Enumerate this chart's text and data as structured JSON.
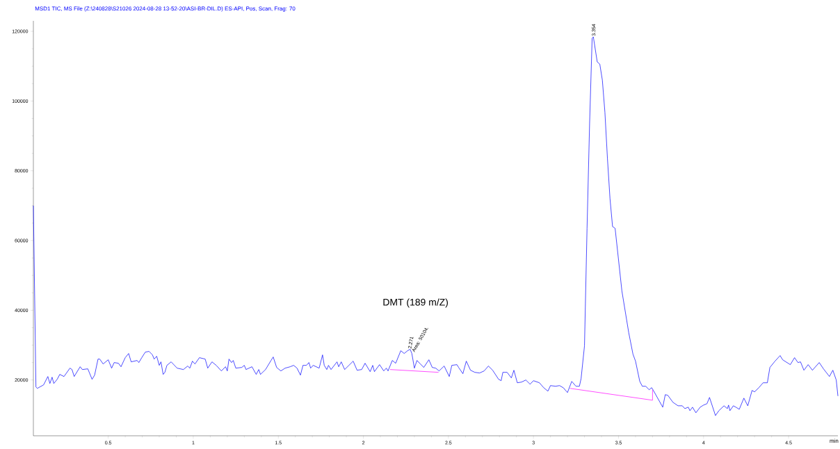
{
  "chart_data": {
    "type": "line",
    "title": "MSD1 TIC, MS File (Z:\\240828\\S21026 2024-08-28 13-52-20\\ASI-BR-DIL.D)    ES-API, Pos, Scan, Frag: 70",
    "xlabel": "min",
    "xlim": [
      0.06,
      4.79
    ],
    "ylim": [
      4000,
      123000
    ],
    "xticks": [
      0.5,
      1,
      1.5,
      2,
      2.5,
      3,
      3.5,
      4,
      4.5
    ],
    "yticks": [
      20000,
      40000,
      60000,
      80000,
      100000,
      120000
    ],
    "grid": false,
    "marker": "none",
    "line_style": "solid",
    "annotations": [
      "DMT (189 m/Z)",
      {
        "text": "3.354",
        "x": 3.354,
        "y": 118400
      },
      {
        "text": "2.271",
        "x": 2.271,
        "y": 28800
      },
      {
        "text": "Area: 50104.",
        "x": 2.29,
        "y": 28000
      }
    ],
    "series": [
      {
        "color": "#0000ff",
        "x": [
          0.06,
          0.075,
          0.083,
          0.12,
          0.145,
          0.157,
          0.17,
          0.18,
          0.2,
          0.215,
          0.24,
          0.275,
          0.287,
          0.3,
          0.335,
          0.348,
          0.38,
          0.405,
          0.42,
          0.44,
          0.45,
          0.47,
          0.5,
          0.52,
          0.535,
          0.56,
          0.575,
          0.6,
          0.62,
          0.635,
          0.67,
          0.68,
          0.697,
          0.718,
          0.74,
          0.76,
          0.77,
          0.785,
          0.8,
          0.81,
          0.823,
          0.833,
          0.845,
          0.87,
          0.905,
          0.942,
          0.967,
          0.98,
          0.995,
          1.01,
          1.036,
          1.07,
          1.085,
          1.11,
          1.135,
          1.165,
          1.19,
          1.2,
          1.21,
          1.225,
          1.235,
          1.25,
          1.285,
          1.3,
          1.31,
          1.345,
          1.37,
          1.385,
          1.395,
          1.425,
          1.457,
          1.47,
          1.49,
          1.515,
          1.54,
          1.57,
          1.59,
          1.61,
          1.63,
          1.645,
          1.665,
          1.68,
          1.69,
          1.705,
          1.74,
          1.76,
          1.77,
          1.785,
          1.795,
          1.81,
          1.845,
          1.855,
          1.87,
          1.89,
          1.915,
          1.94,
          1.963,
          1.99,
          2.01,
          2.04,
          2.055,
          2.065,
          2.095,
          2.12,
          2.135,
          2.145,
          2.17,
          2.19,
          2.22,
          2.24,
          2.26,
          2.275,
          2.285,
          2.3,
          2.315,
          2.335,
          2.355,
          2.385,
          2.405,
          2.425,
          2.445,
          2.475,
          2.505,
          2.52,
          2.55,
          2.56,
          2.585,
          2.605,
          2.63,
          2.655,
          2.683,
          2.71,
          2.735,
          2.76,
          2.795,
          2.81,
          2.82,
          2.845,
          2.87,
          2.885,
          2.905,
          2.93,
          2.955,
          2.98,
          3.0,
          3.035,
          3.06,
          3.085,
          3.1,
          3.13,
          3.153,
          3.175,
          3.2,
          3.225,
          3.25,
          3.27,
          3.28,
          3.3,
          3.315,
          3.33,
          3.345,
          3.352,
          3.375,
          3.39,
          3.405,
          3.42,
          3.435,
          3.45,
          3.465,
          3.48,
          3.52,
          3.56,
          3.585,
          3.6,
          3.625,
          3.64,
          3.66,
          3.68,
          3.695,
          3.705,
          3.76,
          3.775,
          3.79,
          3.82,
          3.85,
          3.875,
          3.89,
          3.91,
          3.92,
          3.935,
          3.955,
          3.98,
          4.0,
          4.02,
          4.035,
          4.07,
          4.09,
          4.12,
          4.14,
          4.147,
          4.155,
          4.175,
          4.19,
          4.21,
          4.237,
          4.26,
          4.285,
          4.3,
          4.325,
          4.35,
          4.375,
          4.39,
          4.42,
          4.45,
          4.465,
          4.51,
          4.535,
          4.555,
          4.57,
          4.59,
          4.615,
          4.64,
          4.68,
          4.705,
          4.74,
          4.76,
          4.78,
          4.79
        ],
        "values": [
          70000,
          18000,
          17600,
          18600,
          21000,
          19000,
          20800,
          19000,
          20200,
          21600,
          21000,
          23400,
          23000,
          21000,
          23800,
          23000,
          23200,
          20200,
          21400,
          26000,
          26000,
          24600,
          25800,
          23400,
          25000,
          24800,
          23800,
          26400,
          27600,
          25200,
          25600,
          25000,
          26400,
          28000,
          28200,
          27200,
          26000,
          26800,
          24200,
          25200,
          21600,
          22200,
          24200,
          25200,
          23400,
          23000,
          24000,
          23400,
          25400,
          24600,
          26400,
          26000,
          23400,
          25200,
          24200,
          22600,
          23800,
          22600,
          26000,
          25000,
          25600,
          23400,
          23600,
          24200,
          23000,
          23800,
          21600,
          23000,
          21600,
          23000,
          25600,
          26600,
          23600,
          22600,
          23400,
          23800,
          24200,
          23400,
          21400,
          24200,
          24200,
          25000,
          23400,
          24200,
          23400,
          27200,
          24200,
          23000,
          24200,
          23000,
          25200,
          23800,
          25200,
          23000,
          24200,
          25400,
          22800,
          23000,
          24800,
          22400,
          24200,
          22400,
          24400,
          22600,
          23400,
          22600,
          25600,
          24800,
          28400,
          27600,
          28400,
          28800,
          27600,
          23400,
          25600,
          24600,
          23600,
          25800,
          23600,
          23400,
          22600,
          24000,
          21000,
          24200,
          24400,
          23600,
          21800,
          25400,
          22800,
          22200,
          22000,
          22600,
          24000,
          22800,
          20200,
          19800,
          22200,
          22200,
          20600,
          22800,
          19200,
          19400,
          20000,
          18800,
          19800,
          19200,
          17800,
          16800,
          18400,
          18200,
          18400,
          17800,
          16400,
          19600,
          18200,
          18200,
          20400,
          29800,
          63500,
          93500,
          118000,
          118400,
          111200,
          110600,
          106000,
          96800,
          83500,
          72000,
          64000,
          63500,
          45500,
          33600,
          27400,
          25400,
          19600,
          18200,
          18200,
          17200,
          17800,
          17000,
          12200,
          15800,
          15600,
          13600,
          12600,
          12600,
          11800,
          12200,
          11200,
          12200,
          10600,
          12200,
          12800,
          13200,
          15000,
          9800,
          11200,
          12600,
          11800,
          12800,
          11200,
          12600,
          12200,
          11600,
          14800,
          12600,
          17000,
          16600,
          17800,
          19200,
          19200,
          23600,
          25400,
          27000,
          25800,
          24400,
          26400,
          25000,
          25200,
          22800,
          24400,
          22800,
          25000,
          23200,
          21000,
          22800,
          20000,
          15400
        ]
      },
      {
        "color": "#ff00ff",
        "x": [
          2.157,
          2.442
        ],
        "values": [
          23000,
          22200
        ]
      },
      {
        "color": "#ff00ff",
        "x": [
          3.215,
          3.7,
          3.7
        ],
        "values": [
          17600,
          14200,
          17200
        ]
      }
    ]
  }
}
